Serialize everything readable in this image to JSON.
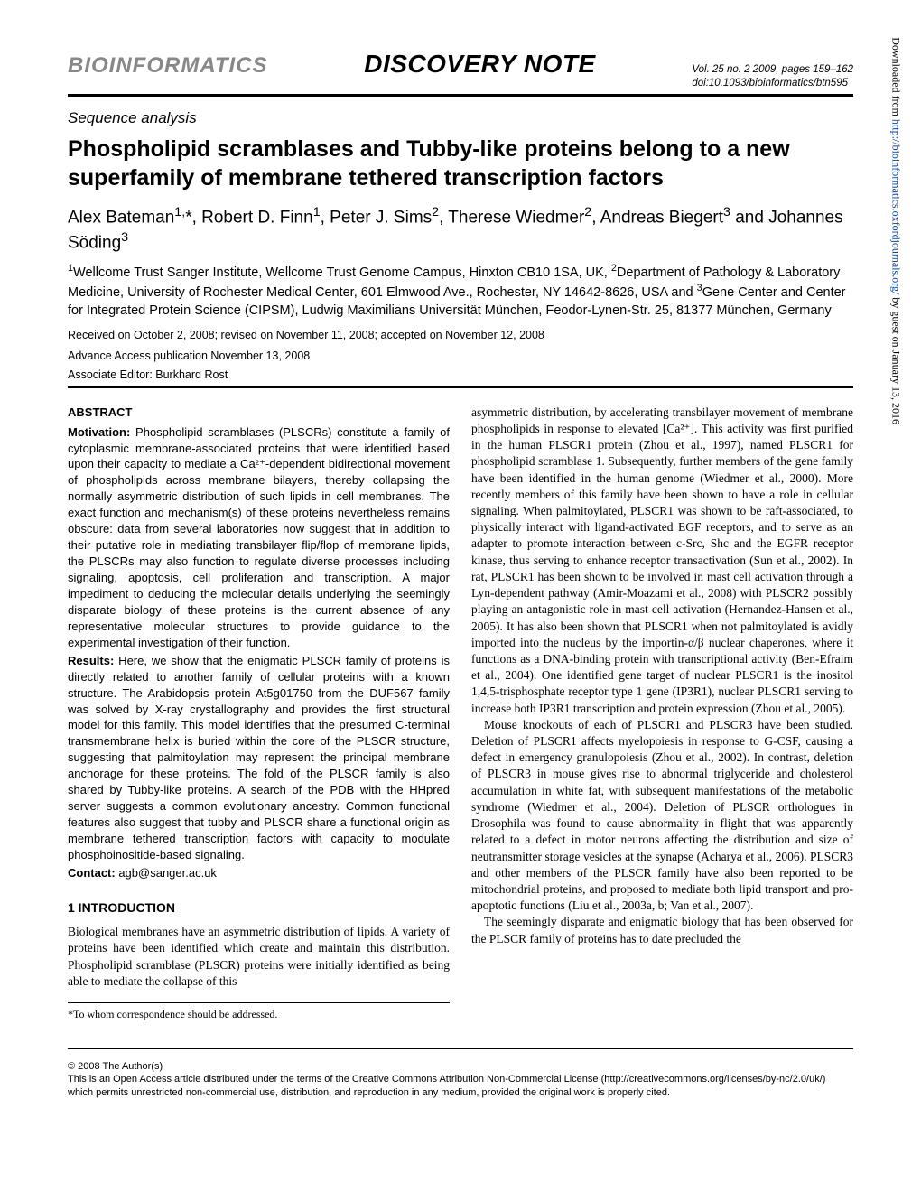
{
  "header": {
    "journal": "BIOINFORMATICS",
    "note_type": "DISCOVERY NOTE",
    "vol_line": "Vol. 25 no. 2 2009, pages 159–162",
    "doi_line": "doi:10.1093/bioinformatics/btn595"
  },
  "section_label": "Sequence analysis",
  "title": "Phospholipid scramblases and Tubby-like proteins belong to a new superfamily of membrane tethered transcription factors",
  "authors_html": "Alex Bateman<sup>1,</sup>*, Robert D. Finn<sup>1</sup>, Peter J. Sims<sup>2</sup>, Therese Wiedmer<sup>2</sup>, Andreas Biegert<sup>3</sup> and Johannes Söding<sup>3</sup>",
  "affiliations_html": "<sup>1</sup>Wellcome Trust Sanger Institute, Wellcome Trust Genome Campus, Hinxton CB10 1SA, UK, <sup>2</sup>Department of Pathology & Laboratory Medicine, University of Rochester Medical Center, 601 Elmwood Ave., Rochester, NY 14642-8626, USA and <sup>3</sup>Gene Center and Center for Integrated Protein Science (CIPSM), Ludwig Maximilians Universität München, Feodor-Lynen-Str. 25, 81377 München, Germany",
  "dates": {
    "received": "Received on October 2, 2008; revised on November 11, 2008; accepted on November 12, 2008",
    "advance": "Advance Access publication November 13, 2008"
  },
  "editor": "Associate Editor: Burkhard Rost",
  "abstract": {
    "heading": "ABSTRACT",
    "motivation_label": "Motivation:",
    "motivation": " Phospholipid scramblases (PLSCRs) constitute a family of cytoplasmic membrane-associated proteins that were identified based upon their capacity to mediate a Ca²⁺-dependent bidirectional movement of phospholipids across membrane bilayers, thereby collapsing the normally asymmetric distribution of such lipids in cell membranes. The exact function and mechanism(s) of these proteins nevertheless remains obscure: data from several laboratories now suggest that in addition to their putative role in mediating transbilayer flip/flop of membrane lipids, the PLSCRs may also function to regulate diverse processes including signaling, apoptosis, cell proliferation and transcription. A major impediment to deducing the molecular details underlying the seemingly disparate biology of these proteins is the current absence of any representative molecular structures to provide guidance to the experimental investigation of their function.",
    "results_label": "Results:",
    "results": " Here, we show that the enigmatic PLSCR family of proteins is directly related to another family of cellular proteins with a known structure. The Arabidopsis protein At5g01750 from the DUF567 family was solved by X-ray crystallography and provides the first structural model for this family. This model identifies that the presumed C-terminal transmembrane helix is buried within the core of the PLSCR structure, suggesting that palmitoylation may represent the principal membrane anchorage for these proteins. The fold of the PLSCR family is also shared by Tubby-like proteins. A search of the PDB with the HHpred server suggests a common evolutionary ancestry. Common functional features also suggest that tubby and PLSCR share a functional origin as membrane tethered transcription factors with capacity to modulate phosphoinositide-based signaling.",
    "contact_label": "Contact:",
    "contact": " agb@sanger.ac.uk"
  },
  "introduction": {
    "heading": "1   INTRODUCTION",
    "left_para": "Biological membranes have an asymmetric distribution of lipids. A variety of proteins have been identified which create and maintain this distribution. Phospholipid scramblase (PLSCR) proteins were initially identified as being able to mediate the collapse of this",
    "right_para1": "asymmetric distribution, by accelerating transbilayer movement of membrane phospholipids in response to elevated [Ca²⁺]. This activity was first purified in the human PLSCR1 protein (Zhou et al., 1997), named PLSCR1 for phospholipid scramblase 1. Subsequently, further members of the gene family have been identified in the human genome (Wiedmer et al., 2000). More recently members of this family have been shown to have a role in cellular signaling. When palmitoylated, PLSCR1 was shown to be raft-associated, to physically interact with ligand-activated EGF receptors, and to serve as an adapter to promote interaction between c-Src, Shc and the EGFR receptor kinase, thus serving to enhance receptor transactivation (Sun et al., 2002). In rat, PLSCR1 has been shown to be involved in mast cell activation through a Lyn-dependent pathway (Amir-Moazami et al., 2008) with PLSCR2 possibly playing an antagonistic role in mast cell activation (Hernandez-Hansen et al., 2005). It has also been shown that PLSCR1 when not palmitoylated is avidly imported into the nucleus by the importin-α/β nuclear chaperones, where it functions as a DNA-binding protein with transcriptional activity (Ben-Efraim et al., 2004). One identified gene target of nuclear PLSCR1 is the inositol 1,4,5-trisphosphate receptor type 1 gene (IP3R1), nuclear PLSCR1 serving to increase both IP3R1 transcription and protein expression (Zhou et al., 2005).",
    "right_para2": "Mouse knockouts of each of PLSCR1 and PLSCR3 have been studied. Deletion of PLSCR1 affects myelopoiesis in response to G-CSF, causing a defect in emergency granulopoiesis (Zhou et al., 2002). In contrast, deletion of PLSCR3 in mouse gives rise to abnormal triglyceride and cholesterol accumulation in white fat, with subsequent manifestations of the metabolic syndrome (Wiedmer et al., 2004). Deletion of PLSCR orthologues in Drosophila was found to cause abnormality in flight that was apparently related to a defect in motor neurons affecting the distribution and size of neutransmitter storage vesicles at the synapse (Acharya et al., 2006). PLSCR3 and other members of the PLSCR family have also been reported to be mitochondrial proteins, and proposed to mediate both lipid transport and pro-apoptotic functions (Liu et al., 2003a, b; Van et al., 2007).",
    "right_para3": "The seemingly disparate and enigmatic biology that has been observed for the PLSCR family of proteins has to date precluded the"
  },
  "correspondence": "*To whom correspondence should be addressed.",
  "copyright": {
    "line1": "© 2008 The Author(s)",
    "line2": "This is an Open Access article distributed under the terms of the Creative Commons Attribution Non-Commercial License (http://creativecommons.org/licenses/by-nc/2.0/uk/) which permits unrestricted non-commercial use, distribution, and reproduction in any medium, provided the original work is properly cited."
  },
  "side_note": {
    "prefix": "Downloaded from ",
    "link": "http://bioinformatics.oxfordjournals.org/",
    "suffix": " by guest on January 13, 2016"
  }
}
